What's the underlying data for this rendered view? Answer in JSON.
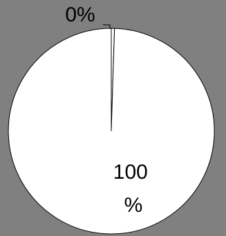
{
  "chart_data": {
    "type": "pie",
    "slices": [
      {
        "label_lines": [
          "0%"
        ],
        "value": 0.5,
        "color": "#ffffff"
      },
      {
        "label_lines": [
          "100",
          "%"
        ],
        "value": 99.5,
        "color": "#ffffff"
      }
    ],
    "title": "",
    "legend": "none",
    "background_color": "#808080",
    "stroke_color": "#000000"
  }
}
